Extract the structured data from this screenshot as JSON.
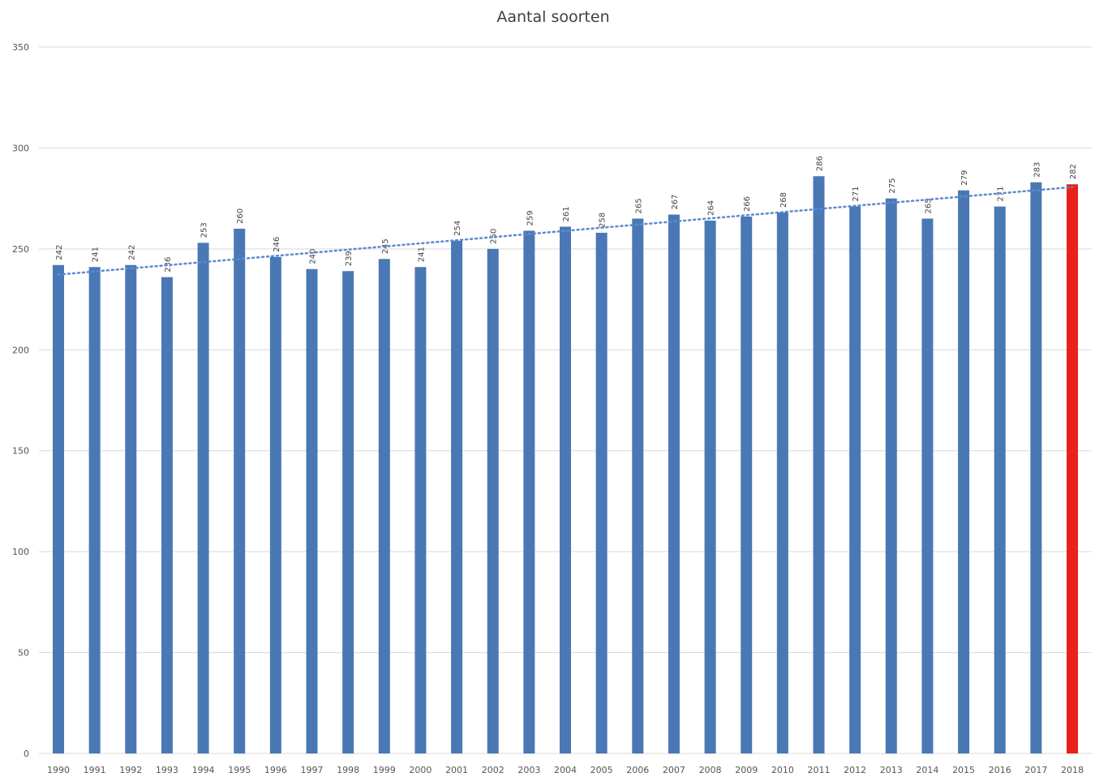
{
  "chart_data": {
    "type": "bar",
    "title": "Aantal soorten",
    "xlabel": "",
    "ylabel": "",
    "ylim": [
      0,
      350
    ],
    "yticks": [
      0,
      50,
      100,
      150,
      200,
      250,
      300,
      350
    ],
    "grid": true,
    "legend": "none",
    "categories": [
      "1990",
      "1991",
      "1992",
      "1993",
      "1994",
      "1995",
      "1996",
      "1997",
      "1998",
      "1999",
      "2000",
      "2001",
      "2002",
      "2003",
      "2004",
      "2005",
      "2006",
      "2007",
      "2008",
      "2009",
      "2010",
      "2011",
      "2012",
      "2013",
      "2014",
      "2015",
      "2016",
      "2017",
      "2018"
    ],
    "series": [
      {
        "values": [
          242,
          241,
          242,
          236,
          253,
          260,
          246,
          240,
          239,
          245,
          241,
          254,
          250,
          259,
          261,
          258,
          265,
          267,
          264,
          266,
          268,
          286,
          271,
          275,
          265,
          279,
          271,
          283,
          282
        ],
        "color": "#4a78b5",
        "highlight_color": "#e8221b",
        "highlight_category": "2018"
      }
    ],
    "trendline": {
      "type": "linear",
      "style": "dotted",
      "color": "#5b8ad1"
    },
    "colors": {
      "grid": "#d9d9d9",
      "axis_text": "#555555",
      "title": "#404040"
    }
  }
}
